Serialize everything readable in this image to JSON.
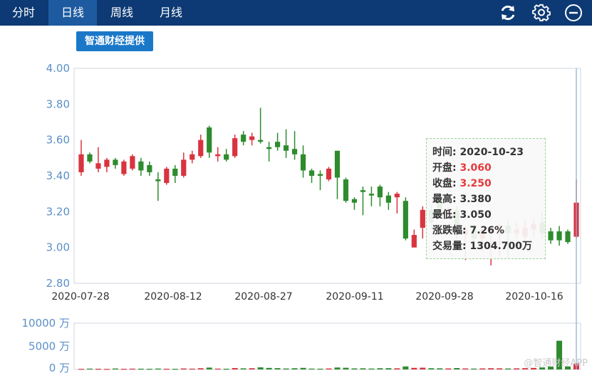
{
  "tabs": [
    {
      "label": "分时",
      "active": false
    },
    {
      "label": "日线",
      "active": true
    },
    {
      "label": "周线",
      "active": false
    },
    {
      "label": "月线",
      "active": false
    }
  ],
  "toolbar_icons": [
    "refresh-icon",
    "gear-icon",
    "zoom-out-icon"
  ],
  "provider_badge": "智通财经提供",
  "tooltip": {
    "time_label": "时间:",
    "time_value": "2020-10-23",
    "open_label": "开盘:",
    "open_value": "3.060",
    "close_label": "收盘:",
    "close_value": "3.250",
    "high_label": "最高:",
    "high_value": "3.380",
    "low_label": "最低:",
    "low_value": "3.050",
    "change_label": "涨跌幅:",
    "change_value": "7.26%",
    "volume_label": "交易量:",
    "volume_value": "1304.700万"
  },
  "watermark": "@智通财经APP",
  "colors": {
    "up": "#d8343f",
    "down": "#2e8b2e",
    "axis_text": "#5b8fc7",
    "header": "#0d3a74",
    "crosshair": "#8fb3d9"
  },
  "chart_data": {
    "type": "candlestick",
    "price_ticks": [
      "4.00",
      "3.80",
      "3.60",
      "3.40",
      "3.20",
      "3.00",
      "2.80"
    ],
    "ylim": [
      2.8,
      4.0
    ],
    "x_tick_labels": [
      "2020-07-28",
      "2020-08-12",
      "2020-08-27",
      "2020-09-11",
      "2020-09-28",
      "2020-10-16"
    ],
    "volume_ticks": [
      "10000 万",
      "5000 万",
      "0 万"
    ],
    "volume_ylim": [
      0,
      10000
    ],
    "candles": [
      [
        3.42,
        3.52,
        3.6,
        3.4
      ],
      [
        3.52,
        3.48,
        3.53,
        3.47
      ],
      [
        3.44,
        3.47,
        3.56,
        3.42
      ],
      [
        3.45,
        3.49,
        3.5,
        3.42
      ],
      [
        3.49,
        3.46,
        3.5,
        3.44
      ],
      [
        3.41,
        3.48,
        3.49,
        3.4
      ],
      [
        3.44,
        3.51,
        3.52,
        3.43
      ],
      [
        3.48,
        3.43,
        3.5,
        3.4
      ],
      [
        3.46,
        3.42,
        3.48,
        3.4
      ],
      [
        3.38,
        3.37,
        3.42,
        3.26
      ],
      [
        3.36,
        3.44,
        3.45,
        3.35
      ],
      [
        3.44,
        3.4,
        3.46,
        3.36
      ],
      [
        3.4,
        3.49,
        3.53,
        3.39
      ],
      [
        3.49,
        3.52,
        3.54,
        3.47
      ],
      [
        3.51,
        3.6,
        3.63,
        3.5
      ],
      [
        3.67,
        3.53,
        3.68,
        3.5
      ],
      [
        3.51,
        3.52,
        3.56,
        3.48
      ],
      [
        3.52,
        3.49,
        3.55,
        3.48
      ],
      [
        3.51,
        3.61,
        3.63,
        3.5
      ],
      [
        3.63,
        3.59,
        3.65,
        3.57
      ],
      [
        3.6,
        3.62,
        3.64,
        3.57
      ],
      [
        3.6,
        3.59,
        3.78,
        3.58
      ],
      [
        3.56,
        3.55,
        3.59,
        3.48
      ],
      [
        3.59,
        3.56,
        3.64,
        3.54
      ],
      [
        3.57,
        3.54,
        3.66,
        3.5
      ],
      [
        3.55,
        3.52,
        3.65,
        3.49
      ],
      [
        3.52,
        3.43,
        3.57,
        3.39
      ],
      [
        3.43,
        3.4,
        3.44,
        3.36
      ],
      [
        3.41,
        3.4,
        3.43,
        3.32
      ],
      [
        3.38,
        3.44,
        3.45,
        3.37
      ],
      [
        3.54,
        3.39,
        3.54,
        3.27
      ],
      [
        3.38,
        3.26,
        3.39,
        3.25
      ],
      [
        3.27,
        3.25,
        3.28,
        3.21
      ],
      [
        3.32,
        3.31,
        3.34,
        3.18
      ],
      [
        3.3,
        3.29,
        3.34,
        3.23
      ],
      [
        3.34,
        3.28,
        3.35,
        3.23
      ],
      [
        3.29,
        3.25,
        3.31,
        3.21
      ],
      [
        3.28,
        3.3,
        3.31,
        3.19
      ],
      [
        3.26,
        3.05,
        3.28,
        3.04
      ],
      [
        3.0,
        3.07,
        3.1,
        3.0
      ],
      [
        3.11,
        3.21,
        3.23,
        3.05
      ],
      [
        3.21,
        3.14,
        3.24,
        3.1
      ],
      [
        3.3,
        3.18,
        3.31,
        3.16
      ],
      [
        3.18,
        3.21,
        3.23,
        3.16
      ],
      [
        3.21,
        3.07,
        3.23,
        3.04
      ],
      [
        3.07,
        3.1,
        3.12,
        2.93
      ],
      [
        3.1,
        3.05,
        3.13,
        3.03
      ],
      [
        3.05,
        3.1,
        3.12,
        2.98
      ],
      [
        3.08,
        3.09,
        3.11,
        2.9
      ],
      [
        3.09,
        3.12,
        3.13,
        2.95
      ],
      [
        3.12,
        3.08,
        3.15,
        2.94
      ],
      [
        3.08,
        3.1,
        3.14,
        3.05
      ],
      [
        3.06,
        3.11,
        3.16,
        3.04
      ],
      [
        3.1,
        3.13,
        3.16,
        3.06
      ],
      [
        3.14,
        3.08,
        3.2,
        3.05
      ],
      [
        3.09,
        3.04,
        3.11,
        3.02
      ],
      [
        3.09,
        3.04,
        3.12,
        3.01
      ],
      [
        3.09,
        3.03,
        3.1,
        3.02
      ],
      [
        3.06,
        3.25,
        3.38,
        3.05
      ]
    ],
    "volumes": [
      120,
      180,
      150,
      110,
      200,
      130,
      170,
      160,
      140,
      190,
      150,
      130,
      210,
      170,
      260,
      400,
      180,
      150,
      300,
      230,
      260,
      450,
      330,
      280,
      200,
      260,
      340,
      180,
      160,
      210,
      420,
      360,
      220,
      240,
      190,
      260,
      270,
      240,
      650,
      340,
      380,
      260,
      240,
      220,
      300,
      210,
      180,
      220,
      260,
      240,
      200,
      230,
      280,
      330,
      440,
      600,
      6200,
      620,
      1304.7
    ]
  }
}
